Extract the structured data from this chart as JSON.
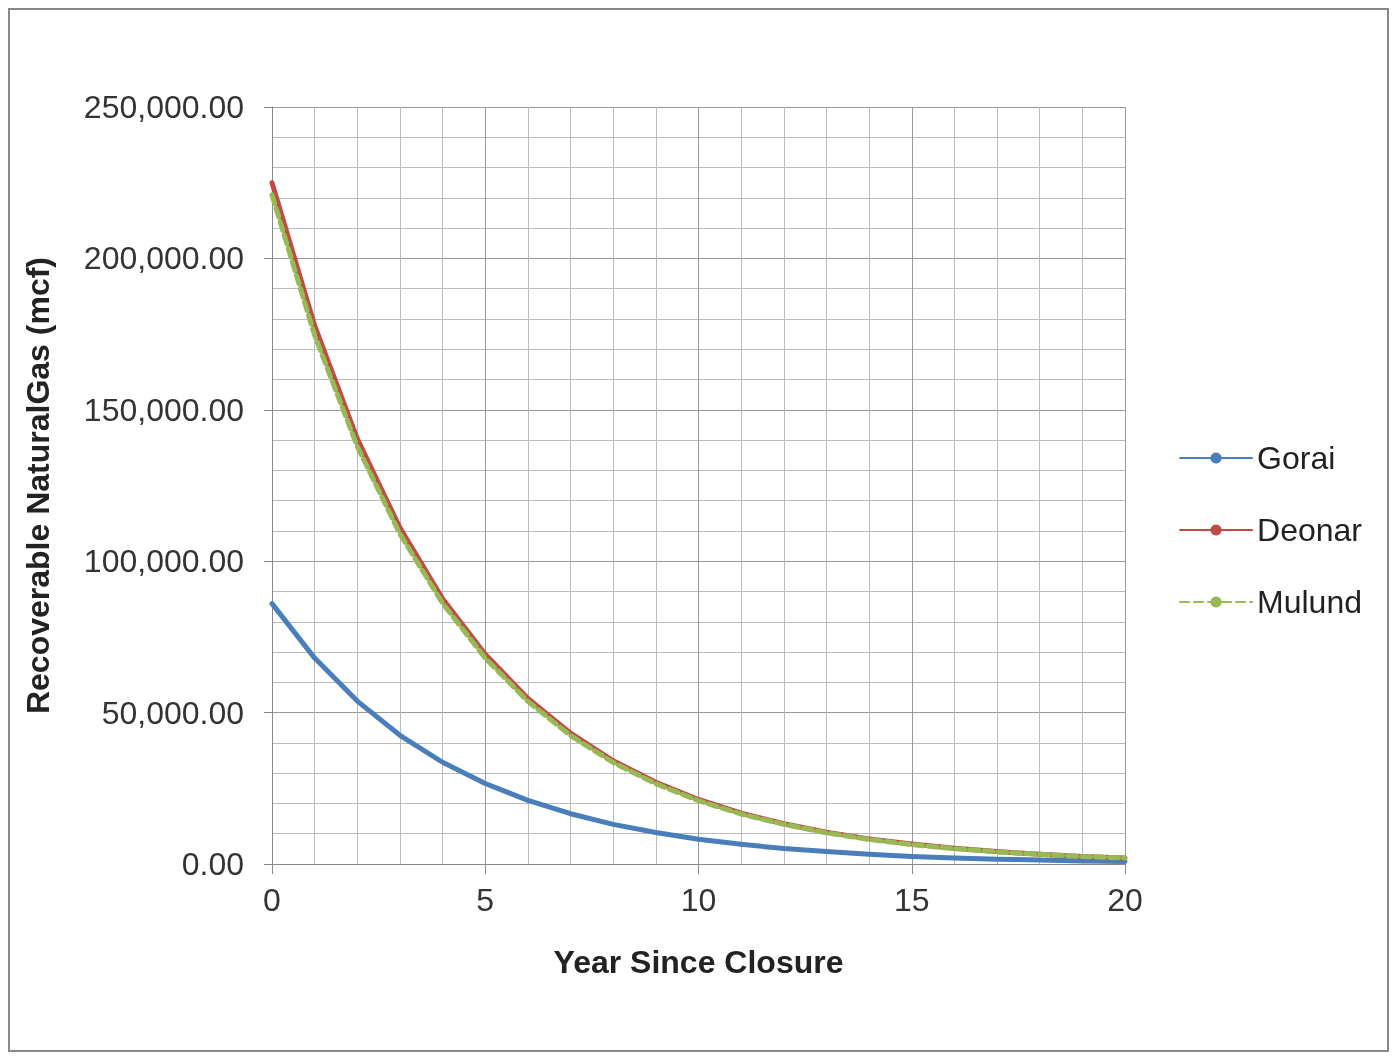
{
  "chart_data": {
    "type": "line",
    "xlabel": "Year Since Closure",
    "ylabel": "Recoverable NaturalGas (mcf)",
    "x": [
      0,
      1,
      2,
      3,
      4,
      5,
      6,
      7,
      8,
      9,
      10,
      11,
      12,
      13,
      14,
      15,
      16,
      17,
      18,
      19,
      20
    ],
    "series": [
      {
        "name": "Gorai",
        "color": "#4a7ebb",
        "line_style": "solid",
        "values": [
          86000,
          68000,
          53800,
          42500,
          33600,
          26600,
          21000,
          16600,
          13100,
          10400,
          8200,
          6500,
          5100,
          4100,
          3200,
          2500,
          2000,
          1600,
          1300,
          1000,
          800
        ]
      },
      {
        "name": "Deonar",
        "color": "#be4b48",
        "line_style": "solid",
        "values": [
          225000,
          177800,
          140400,
          111000,
          87600,
          69300,
          54700,
          43200,
          34100,
          27000,
          21300,
          16800,
          13300,
          10500,
          8300,
          6600,
          5200,
          4100,
          3200,
          2500,
          2000
        ]
      },
      {
        "name": "Mulund",
        "color": "#98b954",
        "line_style": "dashed",
        "values": [
          221000,
          174600,
          137900,
          109000,
          86100,
          68000,
          53700,
          42400,
          33500,
          26500,
          20900,
          16500,
          13100,
          10300,
          8100,
          6400,
          5100,
          4000,
          3200,
          2500,
          2000
        ]
      }
    ],
    "xlim": [
      0,
      20
    ],
    "xticks": [
      0,
      5,
      10,
      15,
      20
    ],
    "ylim": [
      0,
      250000
    ],
    "yticks": [
      {
        "value": 0,
        "label": "0.00"
      },
      {
        "value": 50000,
        "label": "50,000.00"
      },
      {
        "value": 100000,
        "label": "100,000.00"
      },
      {
        "value": 150000,
        "label": "150,000.00"
      },
      {
        "value": 200000,
        "label": "200,000.00"
      },
      {
        "value": 250000,
        "label": "250,000.00"
      }
    ],
    "grid": true,
    "legend": "right",
    "marker": "none"
  }
}
